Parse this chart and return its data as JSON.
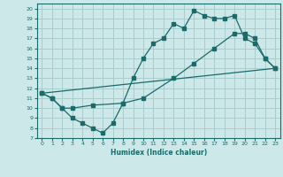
{
  "title": "",
  "xlabel": "Humidex (Indice chaleur)",
  "bg_color": "#cce8e8",
  "grid_color": "#aacccc",
  "line_color": "#1a6b6b",
  "xlim": [
    -0.5,
    23.5
  ],
  "ylim": [
    7,
    20.5
  ],
  "xticks": [
    0,
    1,
    2,
    3,
    4,
    5,
    6,
    7,
    8,
    9,
    10,
    11,
    12,
    13,
    14,
    15,
    16,
    17,
    18,
    19,
    20,
    21,
    22,
    23
  ],
  "yticks": [
    7,
    8,
    9,
    10,
    11,
    12,
    13,
    14,
    15,
    16,
    17,
    18,
    19,
    20
  ],
  "line1_x": [
    0,
    1,
    2,
    3,
    4,
    5,
    6,
    7,
    8,
    9,
    10,
    11,
    12,
    13,
    14,
    15,
    16,
    17,
    18,
    19,
    20,
    21,
    22,
    23
  ],
  "line1_y": [
    11.5,
    11.0,
    10.0,
    9.0,
    8.5,
    8.0,
    7.5,
    8.5,
    10.5,
    13.0,
    15.0,
    16.5,
    17.0,
    18.5,
    18.0,
    19.8,
    19.3,
    19.0,
    19.0,
    19.3,
    17.0,
    16.5,
    15.0,
    14.0
  ],
  "line2_x": [
    0,
    1,
    2,
    3,
    5,
    8,
    10,
    13,
    15,
    17,
    19,
    20,
    21,
    22,
    23
  ],
  "line2_y": [
    11.5,
    11.0,
    10.0,
    10.0,
    10.3,
    10.5,
    11.0,
    13.0,
    14.5,
    16.0,
    17.5,
    17.5,
    17.0,
    15.0,
    14.0
  ],
  "line3_x": [
    0,
    23
  ],
  "line3_y": [
    11.5,
    14.0
  ]
}
